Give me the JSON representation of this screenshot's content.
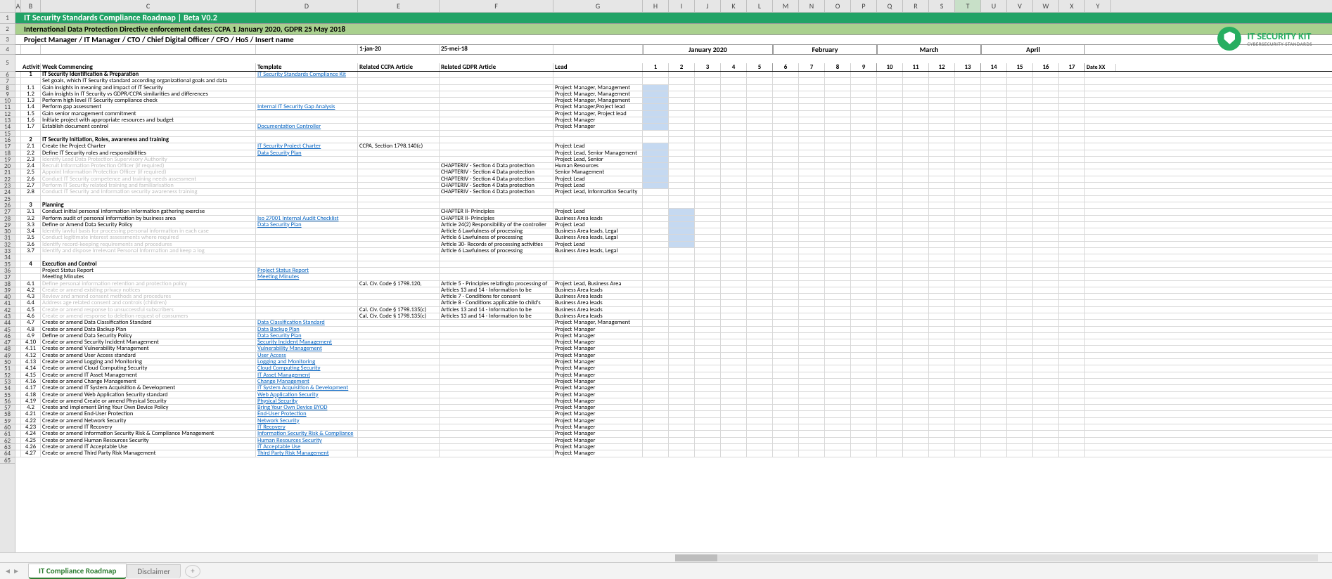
{
  "colors": {
    "title_bg": "#21a366",
    "subtitle_bg": "#a9d08e",
    "fill_week": "#c5d9f1",
    "fill_week_dark": "#8db4e2",
    "link": "#0563c1",
    "grey_text": "#bfbfbf",
    "tab_active": "#2e7d32"
  },
  "col_letters": [
    "A",
    "B",
    "C",
    "D",
    "E",
    "F",
    "G",
    "H",
    "I",
    "J",
    "K",
    "L",
    "M",
    "N",
    "O",
    "P",
    "Q",
    "R",
    "S",
    "T",
    "U",
    "V",
    "W",
    "X",
    "Y"
  ],
  "selected_col": "T",
  "title": "IT Security Standards Compliance Roadmap | Beta V0.2",
  "subtitle": "International Data Protection Directive enforcement dates: CCPA 1 January 2020, GDPR 25 May 2018",
  "roles": "Project Manager / IT Manager / CTO / Chief Digital Officer / CFO / HoS /  Insert name",
  "logo": {
    "line1": "IT SECURITY KIT",
    "line2": "CYBERSECURITY STANDARDS"
  },
  "date_row": {
    "ccpa": "1-jan-20",
    "gdpr": "25-mei-18"
  },
  "months": [
    {
      "label": "January 2020",
      "weeks": [
        "1",
        "2",
        "3",
        "4",
        "5"
      ]
    },
    {
      "label": "February",
      "weeks": [
        "6",
        "7",
        "8",
        "9"
      ]
    },
    {
      "label": "March",
      "weeks": [
        "10",
        "11",
        "12",
        "13"
      ]
    },
    {
      "label": "April",
      "weeks": [
        "14",
        "15",
        "16",
        "17"
      ]
    }
  ],
  "last_week_col": "Date XX",
  "headers": {
    "activity": "Activity",
    "week": "Week Commencing",
    "template": "Template",
    "ccpa": "Related CCPA Article",
    "gdpr": "Related GDPR Article",
    "lead": "Lead"
  },
  "rows": [
    {
      "n": "1",
      "act": "IT Security Identification & Preparation",
      "bold": true,
      "tpl": "IT Security Standards Compliance Kit",
      "tpl_link": true,
      "r": 6
    },
    {
      "n": "",
      "act": "Set goals, which IT Security standard according organizational goals and data",
      "r": 7
    },
    {
      "n": "1.1",
      "act": "Gain insights in meaning and impact of IT Security",
      "lead": "Project Manager, Management",
      "fill": [
        0
      ],
      "r": 8
    },
    {
      "n": "1.2",
      "act": "Gain insights in IT Security vs GDPR/CCPA similarities and differences",
      "lead": "Project Manager, Management",
      "fill": [
        0
      ],
      "r": 9
    },
    {
      "n": "1.3",
      "act": "Perform high level IT Security compliance check",
      "lead": "Project Manager, Management",
      "fill": [
        0
      ],
      "r": 10
    },
    {
      "n": "1.4",
      "act": "Perform gap assessment",
      "tpl": "Internal IT Security Gap Analysis",
      "tpl_link": true,
      "lead": "Project Manager,Project lead",
      "fill": [
        0
      ],
      "r": 11
    },
    {
      "n": "1.5",
      "act": "Gain senior management commitment",
      "lead": "Project Manager, Project lead",
      "fill": [
        0
      ],
      "r": 12
    },
    {
      "n": "1.6",
      "act": "Initiate project with appropriate resources and budget",
      "lead": "Project Manager",
      "fill": [
        0
      ],
      "r": 13
    },
    {
      "n": "1.7",
      "act": "Establish document control",
      "tpl": "Documentation Controller",
      "tpl_link": true,
      "lead": "Project Manager",
      "fill": [
        0
      ],
      "r": 14
    },
    {
      "blank": true,
      "r": 15
    },
    {
      "n": "2",
      "act": "IT Security Initiation, Roles, awareness and training",
      "bold": true,
      "r": 16
    },
    {
      "n": "2.1",
      "act": "Create the Project Charter",
      "tpl": "IT Security Project Charter",
      "tpl_link": true,
      "ccpa": "CCPA, Section 1798.140(c)",
      "lead": "Project Lead",
      "fill": [
        0
      ],
      "r": 17
    },
    {
      "n": "2.2",
      "act": "Define IT Security roles and responsibilities",
      "tpl": "Data Security Plan",
      "tpl_link": true,
      "lead": "Project Lead, Senior Management",
      "fill": [
        0
      ],
      "r": 18
    },
    {
      "n": "2.3",
      "act": "Identify Lead Data Protection Supervisory Authority",
      "grey": true,
      "lead": "Project Lead, Senior",
      "fill": [
        0
      ],
      "r": 19
    },
    {
      "n": "2.4",
      "act": "Recruit Information Protection Officer (if required)",
      "grey": true,
      "gdpr": "CHAPTERIV -  Section 4 Data protection",
      "lead": "Human Resources",
      "fill": [
        0
      ],
      "r": 20
    },
    {
      "n": "2.5",
      "act": "Appoint Information Protection Officer (if required)",
      "grey": true,
      "gdpr": "CHAPTERIV -  Section 4 Data protection",
      "lead": "Senior Management",
      "fill": [
        0
      ],
      "r": 21
    },
    {
      "n": "2.6",
      "act": "Conduct IT Security competence and training needs assessment",
      "grey": true,
      "gdpr": "CHAPTERIV -  Section 4 Data protection",
      "lead": "Project Lead",
      "fill": [
        0
      ],
      "r": 22
    },
    {
      "n": "2.7",
      "act": "Perform IT Security related training and familiarisation",
      "grey": true,
      "gdpr": "CHAPTERIV -  Section 4 Data protection",
      "lead": "Project Lead",
      "fill": [
        0
      ],
      "r": 23
    },
    {
      "n": "2.8",
      "act": "Conduct IT Security and Information security awareness training",
      "grey": true,
      "gdpr": "CHAPTERIV -  Section 4 Data protection",
      "lead": "Project Lead, Information Security",
      "r": 24,
      "selrow": true
    },
    {
      "blank": true,
      "r": 25
    },
    {
      "n": "3",
      "act": "Planning",
      "bold": true,
      "r": 26
    },
    {
      "n": "3.1",
      "act": "Conduct initial personal information information gathering exercise",
      "gdpr": "CHAPTER II- Principles",
      "lead": "Project Lead",
      "fill": [
        1
      ],
      "r": 27
    },
    {
      "n": "3.2",
      "act": "Perform audit of personal information by business area",
      "tpl": "Iso 27001 Internal Audit Checklist",
      "tpl_link": true,
      "gdpr": "CHAPTER II- Principles",
      "lead": "Business Area leads",
      "fill": [
        1
      ],
      "r": 28
    },
    {
      "n": "3.3",
      "act": "Define or Amend Data Security Policy",
      "tpl": "Data Security Plan",
      "tpl_link": true,
      "gdpr": "Article 24(2) Responsibility of the controller",
      "lead": "Project Lead",
      "fill": [
        1
      ],
      "r": 29
    },
    {
      "n": "3.4",
      "act": "Identify lawful basis for processing personal information in each case",
      "grey": true,
      "gdpr": "Article 6 Lawfulness of processing",
      "lead": "Business Area leads, Legal",
      "fill": [
        1
      ],
      "r": 30
    },
    {
      "n": "3.5",
      "act": "Conduct legitimate interest assessments where required",
      "grey": true,
      "gdpr": "Article 6 Lawfulness of processing",
      "lead": "Business Area leads, Legal",
      "fill": [
        1
      ],
      "r": 31
    },
    {
      "n": "3.6",
      "act": "Identify record-keeping requirements and procedures",
      "grey": true,
      "gdpr": "Article 30- Records of processing activities",
      "lead": "Project Lead",
      "fill": [
        1
      ],
      "r": 32
    },
    {
      "n": "3.7",
      "act": "Identify and dispose Irrelevant Personal Information and keep a log",
      "grey": true,
      "gdpr": "Article 6 Lawfulness of processing",
      "lead": "Business Area leads, Legal",
      "r": 33
    },
    {
      "blank": true,
      "r": 34
    },
    {
      "n": "4",
      "act": "Execution and Control",
      "bold": true,
      "r": 35
    },
    {
      "n": "",
      "act": "Project Status Report",
      "tpl": "Project Status Report",
      "tpl_link": true,
      "r": 36
    },
    {
      "n": "",
      "act": "Meeting Minutes",
      "tpl": "Meeting Minutes",
      "tpl_link": true,
      "r": 37
    },
    {
      "n": "4.1",
      "act": "Define personal information retention and protection policy",
      "grey": true,
      "ccpa": "Cal. Civ. Code § 1798.120,",
      "gdpr": "Article 5 - Principles relatingto processing of",
      "lead": "Project Lead, Business Area",
      "r": 38
    },
    {
      "n": "4.2",
      "act": "Create or amend existing privacy notices",
      "grey": true,
      "gdpr": "Articles 13 and 14 - Information to be",
      "lead": "Business Area leads",
      "r": 39
    },
    {
      "n": "4.3",
      "act": "Review and amend consent methods and procedures",
      "grey": true,
      "gdpr": "Article 7 -  Conditions for consent",
      "lead": "Business Area leads",
      "r": 40
    },
    {
      "n": "4.4",
      "act": "Address age related consent and controls (children)",
      "grey": true,
      "gdpr": "Article 8 - Conditions applicable to child's",
      "lead": "Business Area leads",
      "r": 41
    },
    {
      "n": "4.5",
      "act": "Create or amend response to unsuccessful subscribers",
      "grey": true,
      "ccpa": "Cal. Civ. Code § 1798.135(c)",
      "gdpr": "Articles 13 and 14 - Information to be",
      "lead": "Business Area leads",
      "r": 42
    },
    {
      "n": "4.6",
      "act": "Create or amend response to deletion request of consumers",
      "grey": true,
      "ccpa": "Cal. Civ. Code § 1798.135(c)",
      "gdpr": "Articles 13 and 14 - Information to be",
      "lead": "Business Area leads",
      "r": 43
    },
    {
      "n": "4.7",
      "act": "Create or amend Data Classification Standard",
      "tpl": "Data Classification Standard",
      "tpl_link": true,
      "lead": "Project Manager, Management",
      "r": 44
    },
    {
      "n": "4.8",
      "act": "Create or amend Data Backup Plan",
      "tpl": "Data Backup Plan",
      "tpl_link": true,
      "lead": "Project Manager",
      "r": 45
    },
    {
      "n": "4.9",
      "act": "Define or amend Data Security Policy",
      "tpl": "Data Security Plan",
      "tpl_link": true,
      "lead": "Project Manager",
      "r": 46
    },
    {
      "n": "4.10",
      "act": "Create or amend Security Incident Management",
      "tpl": "Security Incident Management",
      "tpl_link": true,
      "lead": "Project Manager",
      "r": 47
    },
    {
      "n": "4.11",
      "act": "Create or amend Vulnerability Management",
      "tpl": "Vulnerability Management",
      "tpl_link": true,
      "lead": "Project Manager",
      "r": 48
    },
    {
      "n": "4.12",
      "act": "Create or amend User Access standard",
      "tpl": "User Access",
      "tpl_link": true,
      "lead": "Project Manager",
      "r": 49
    },
    {
      "n": "4.13",
      "act": "Create or amend Logging and Monitoring",
      "tpl": "Logging and Monitoring",
      "tpl_link": true,
      "lead": "Project Manager",
      "r": 50
    },
    {
      "n": "4.14",
      "act": "Create or amend Cloud Computing Security",
      "tpl": "Cloud Computing Security",
      "tpl_link": true,
      "lead": "Project Manager",
      "r": 51
    },
    {
      "n": "4.15",
      "act": "Create or amend IT Asset Management",
      "tpl": "IT Asset Management",
      "tpl_link": true,
      "lead": "Project Manager",
      "r": 52
    },
    {
      "n": "4.16",
      "act": "Create or amend Change Management",
      "tpl": "Change Management",
      "tpl_link": true,
      "lead": "Project Manager",
      "r": 53
    },
    {
      "n": "4.17",
      "act": "Create or amend IT System Acquisition & Development",
      "tpl": "IT System Acquisition & Development",
      "tpl_link": true,
      "lead": "Project Manager",
      "r": 54
    },
    {
      "n": "4.18",
      "act": "Create or amend Web Application Security standard",
      "tpl": "Web Application Security",
      "tpl_link": true,
      "lead": "Project Manager",
      "r": 55
    },
    {
      "n": "4.19",
      "act": "Create or amend Create or amend Physical Security",
      "tpl": "Physical Security",
      "tpl_link": true,
      "lead": "Project Manager",
      "r": 56
    },
    {
      "n": "4.2",
      "act": "Create and implement Bring Your Own Device Policy",
      "tpl": "Bring Your Own Device BYOD",
      "tpl_link": true,
      "lead": "Project Manager",
      "r": 57
    },
    {
      "n": "4.21",
      "act": "Create or amend End-User Protection",
      "tpl": "End-User Protection",
      "tpl_link": true,
      "lead": "Project Manager",
      "r": 58
    },
    {
      "n": "4.22",
      "act": "Create or amend Network Security",
      "tpl": "Network Security",
      "tpl_link": true,
      "lead": "Project Manager",
      "r": 59
    },
    {
      "n": "4.23",
      "act": "Create or amend IT Recovery",
      "tpl": "IT Recovery",
      "tpl_link": true,
      "lead": "Project Manager",
      "r": 60
    },
    {
      "n": "4.24",
      "act": "Create or amend Information Security Risk & Compliance Management",
      "tpl": "Information Security Risk & Compliance",
      "tpl_link": true,
      "lead": "Project Manager",
      "r": 61
    },
    {
      "n": "4.25",
      "act": "Create or amend Human Resources Security",
      "tpl": "Human Resources Security",
      "tpl_link": true,
      "lead": "Project Manager",
      "r": 62
    },
    {
      "n": "4.26",
      "act": "Create or amend IT Acceptable Use",
      "tpl": "IT Acceptable Use",
      "tpl_link": true,
      "lead": "Project Manager",
      "r": 63
    },
    {
      "n": "4.27",
      "act": "Create or amend Third Party Risk Management",
      "tpl": "Third Party Risk Management",
      "tpl_link": true,
      "lead": "Project Manager",
      "r": 64
    }
  ],
  "tabs": {
    "active": "IT Compliance Roadmap",
    "other": [
      "Disclaimer"
    ]
  }
}
